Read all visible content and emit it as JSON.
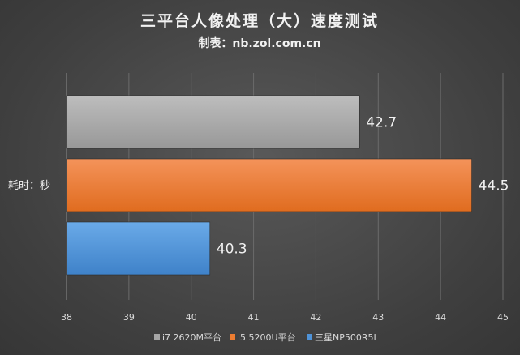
{
  "chart_data": {
    "type": "bar",
    "orientation": "horizontal",
    "title": "三平台人像处理（大）速度测试",
    "subtitle": "制表：nb.zol.com.cn",
    "ylabel": "耗时：秒",
    "xlim": [
      38,
      45
    ],
    "xticks": [
      "38",
      "39",
      "40",
      "41",
      "42",
      "43",
      "44",
      "45"
    ],
    "grid": true,
    "legend_position": "bottom",
    "series": [
      {
        "name": "i7 2620M平台",
        "value": 42.7,
        "label": "42.7",
        "color": "#a6a6a6"
      },
      {
        "name": "i5 5200U平台",
        "value": 44.5,
        "label": "44.5",
        "color": "#ed7d31"
      },
      {
        "name": "三星NP500R5L",
        "value": 40.3,
        "label": "40.3",
        "color": "#4f93d8"
      }
    ]
  }
}
